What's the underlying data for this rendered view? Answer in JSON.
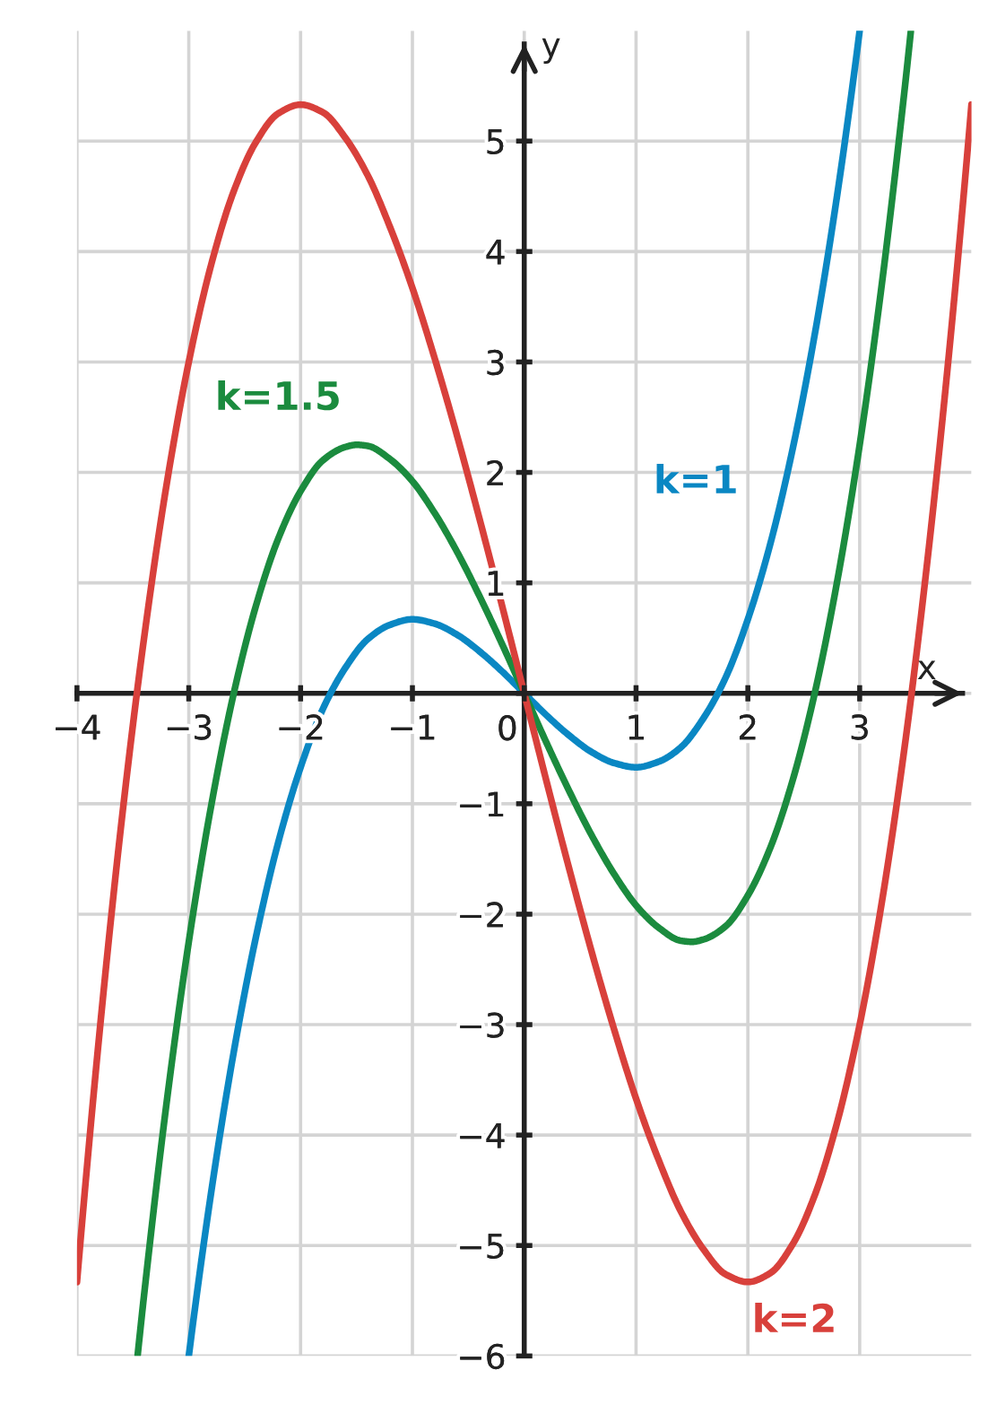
{
  "chart_data": {
    "type": "line",
    "xlabel": "x",
    "ylabel": "y",
    "xlim": [
      -4,
      4
    ],
    "ylim": [
      -6,
      6
    ],
    "xticks": [
      {
        "value": -4,
        "label": "−4"
      },
      {
        "value": -3,
        "label": "−3"
      },
      {
        "value": -2,
        "label": "−2"
      },
      {
        "value": -1,
        "label": "−1"
      },
      {
        "value": 0,
        "label": "0"
      },
      1,
      2,
      3
    ],
    "yticks": [
      {
        "value": -6,
        "label": "−6"
      },
      {
        "value": -5,
        "label": "−5"
      },
      {
        "value": -4,
        "label": "−4"
      },
      {
        "value": -3,
        "label": "−3"
      },
      {
        "value": -2,
        "label": "−2"
      },
      {
        "value": -1,
        "label": "−1"
      },
      {
        "value": 0,
        "label": null
      },
      1,
      2,
      3,
      4,
      5
    ],
    "grid": true,
    "series": [
      {
        "name": "k=1",
        "color": "#0a87c3",
        "x": [
          -3.0,
          -2.8,
          -2.6,
          -2.4,
          -2.2,
          -2.0,
          -1.8,
          -1.6,
          -1.4,
          -1.2,
          -1.0,
          -0.8,
          -0.6,
          -0.4,
          -0.2,
          0,
          0.2,
          0.4,
          0.6,
          0.8,
          1.0,
          1.2,
          1.4,
          1.6,
          1.8,
          2.0,
          2.2,
          2.4,
          2.6,
          2.8,
          3.0
        ],
        "values": [
          -6,
          -4.52,
          -3.26,
          -2.21,
          -1.35,
          -0.67,
          -0.14,
          0.23,
          0.49,
          0.62,
          0.67,
          0.63,
          0.53,
          0.38,
          0.2,
          0,
          -0.2,
          -0.38,
          -0.53,
          -0.63,
          -0.67,
          -0.62,
          -0.49,
          -0.23,
          0.14,
          0.67,
          1.35,
          2.21,
          3.26,
          4.52,
          6
        ]
      },
      {
        "name": "k=1.5",
        "color": "#1b8b3e",
        "x": [
          -3.457,
          -3.4,
          -3.2,
          -3.0,
          -2.8,
          -2.6,
          -2.4,
          -2.2,
          -2.0,
          -1.8,
          -1.6,
          -1.5,
          -1.4,
          -1.2,
          -1.0,
          -0.8,
          -0.6,
          -0.4,
          -0.2,
          0,
          0.2,
          0.4,
          0.6,
          0.8,
          1.0,
          1.2,
          1.4,
          1.5,
          1.6,
          1.8,
          2.0,
          2.2,
          2.4,
          2.6,
          2.8,
          3.0,
          3.2,
          3.4,
          3.457
        ],
        "values": [
          -5.99,
          -5.45,
          -3.72,
          -2.25,
          -1.02,
          -0.01,
          0.79,
          1.4,
          1.83,
          2.11,
          2.23,
          2.25,
          2.24,
          2.12,
          1.92,
          1.63,
          1.28,
          0.88,
          0.45,
          0,
          -0.45,
          -0.88,
          -1.28,
          -1.63,
          -1.92,
          -2.12,
          -2.24,
          -2.25,
          -2.23,
          -2.11,
          -1.83,
          -1.4,
          -0.79,
          0.01,
          1.02,
          2.25,
          3.72,
          5.45,
          5.99
        ]
      },
      {
        "name": "k=2",
        "color": "#d8403b",
        "x": [
          -4.0,
          -3.8,
          -3.6,
          -3.4,
          -3.2,
          -3.0,
          -2.8,
          -2.6,
          -2.4,
          -2.2,
          -2.0,
          -1.8,
          -1.6,
          -1.4,
          -1.2,
          -1.0,
          -0.8,
          -0.6,
          -0.4,
          -0.2,
          0,
          0.2,
          0.4,
          0.6,
          0.8,
          1.0,
          1.2,
          1.4,
          1.6,
          1.8,
          2.0,
          2.2,
          2.4,
          2.6,
          2.8,
          3.0,
          3.2,
          3.4,
          3.6,
          3.8,
          4.0
        ],
        "values": [
          -5.33,
          -3.09,
          -1.15,
          0.5,
          1.88,
          3,
          3.88,
          4.54,
          4.99,
          5.25,
          5.33,
          5.26,
          5.03,
          4.69,
          4.22,
          3.67,
          3.03,
          2.33,
          1.58,
          0.8,
          0,
          -0.8,
          -1.58,
          -2.33,
          -3.03,
          -3.67,
          -4.22,
          -4.69,
          -5.03,
          -5.26,
          -5.33,
          -5.25,
          -4.99,
          -4.54,
          -3.88,
          -3,
          -1.88,
          -0.5,
          1.15,
          3.09,
          5.33
        ]
      }
    ]
  }
}
